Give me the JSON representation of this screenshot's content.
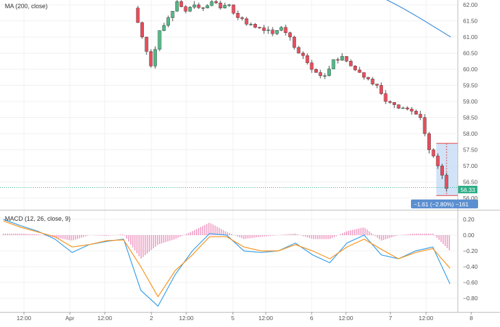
{
  "main_indicator_label": "MA (200, close)",
  "macd_label": "MACD (12, 26, close, 9)",
  "measure_tooltip": "−1.61 (−2.80%) −161",
  "current_price_label": "56.33",
  "colors": {
    "up_candle": "#53b987",
    "down_candle": "#eb4d5c",
    "ma_line": "#3d8ed8",
    "macd_line": "#3aa0e8",
    "signal_line": "#f7931e",
    "histogram": "#e560a0",
    "measure_box": "#c7dcf5",
    "measure_border": "#e04040",
    "tooltip_bg": "#5b8fd0",
    "price_badge": "#2fae88"
  },
  "chart_data": [
    {
      "type": "candlestick",
      "title": "MA (200, close)",
      "y_axis_ticks": [
        "62.00",
        "61.50",
        "61.00",
        "60.50",
        "60.00",
        "59.50",
        "59.00",
        "58.50",
        "58.00",
        "57.50",
        "57.00",
        "56.50",
        "56.00"
      ],
      "ylim": [
        55.9,
        62.2
      ],
      "x_axis_ticks": [
        "12:00",
        "Apr",
        "12:00",
        "2",
        "12:00",
        "5",
        "12:00",
        "6",
        "12:00",
        "7",
        "12:00",
        "8"
      ],
      "series": [
        {
          "name": "MA (200, close)",
          "type": "line",
          "x": [
            0.8,
            0.9
          ],
          "values": [
            62.2,
            61.0
          ]
        }
      ],
      "candles_close_estimate": [
        61.0,
        60.1,
        61.2,
        61.6,
        62.1,
        61.8,
        62.0,
        61.9,
        62.1,
        61.9,
        62.0,
        61.6,
        61.4,
        61.3,
        61.2,
        61.1,
        61.3,
        61.0,
        60.5,
        60.2,
        59.9,
        59.8,
        60.3,
        60.4,
        60.1,
        59.9,
        59.7,
        59.5,
        59.0,
        58.9,
        58.8,
        58.7,
        58.5,
        57.5,
        57.0,
        56.3
      ],
      "current_price": 56.33
    },
    {
      "type": "line",
      "title": "MACD (12, 26, close, 9)",
      "y_axis_ticks": [
        "0.20",
        "0.00",
        "−0.20",
        "−0.40",
        "−0.60",
        "−0.80"
      ],
      "ylim": [
        -0.95,
        0.25
      ],
      "series": [
        {
          "name": "MACD",
          "values": [
            0.2,
            0.12,
            0.05,
            -0.05,
            -0.22,
            -0.12,
            -0.08,
            -0.05,
            -0.7,
            -0.9,
            -0.5,
            -0.2,
            0.02,
            0.0,
            -0.2,
            -0.22,
            -0.2,
            -0.1,
            -0.25,
            -0.35,
            -0.1,
            0.0,
            -0.25,
            -0.3,
            -0.2,
            -0.15,
            -0.62
          ]
        },
        {
          "name": "Signal",
          "values": [
            0.18,
            0.1,
            0.04,
            -0.02,
            -0.15,
            -0.12,
            -0.07,
            -0.06,
            -0.4,
            -0.78,
            -0.45,
            -0.25,
            -0.02,
            -0.02,
            -0.15,
            -0.2,
            -0.2,
            -0.12,
            -0.2,
            -0.3,
            -0.15,
            -0.05,
            -0.18,
            -0.3,
            -0.22,
            -0.17,
            -0.42
          ]
        }
      ],
      "histogram": [
        0.02,
        0.02,
        0.01,
        -0.03,
        -0.07,
        0.0,
        -0.01,
        0.01,
        -0.3,
        -0.12,
        -0.05,
        0.05,
        0.16,
        0.04,
        -0.05,
        -0.02,
        0.0,
        0.02,
        -0.05,
        -0.05,
        0.05,
        0.1,
        -0.07,
        0.0,
        0.02,
        0.02,
        -0.2
      ]
    }
  ]
}
